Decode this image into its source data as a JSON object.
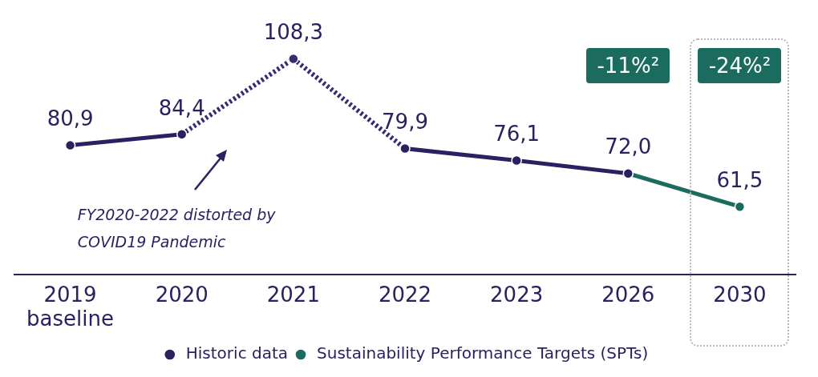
{
  "chart_data": {
    "type": "line",
    "categories": [
      "2019\nbaseline",
      "2020",
      "2021",
      "2022",
      "2023",
      "2026",
      "2030"
    ],
    "series": [
      {
        "name": "Historic data",
        "color": "#2b2160",
        "values": [
          80.9,
          84.4,
          null,
          79.9,
          76.1,
          72.0,
          null
        ],
        "value_labels": [
          "80,9",
          "84,4",
          null,
          "79,9",
          "76,1",
          "72,0",
          null
        ]
      },
      {
        "type": "line",
        "color": "#362b74",
        "line_style": "dotted",
        "values": [
          null,
          84.4,
          108.3,
          79.9,
          null,
          null,
          null
        ],
        "value_labels": [
          null,
          null,
          "108,3",
          null,
          null,
          null,
          null
        ]
      },
      {
        "name": "Sustainability Performance Targets (SPTs)",
        "color": "#1b6b5f",
        "values": [
          null,
          null,
          null,
          null,
          null,
          72.0,
          61.5
        ],
        "value_labels": [
          null,
          null,
          null,
          null,
          null,
          null,
          "61,5"
        ]
      }
    ],
    "annotations": [
      "-11%²",
      "-24%²",
      "FY2020-2022 distorted by COVID19 Pandemic"
    ],
    "marker": "circle",
    "line_style": "solid",
    "grid": false,
    "legend": "bottom"
  }
}
